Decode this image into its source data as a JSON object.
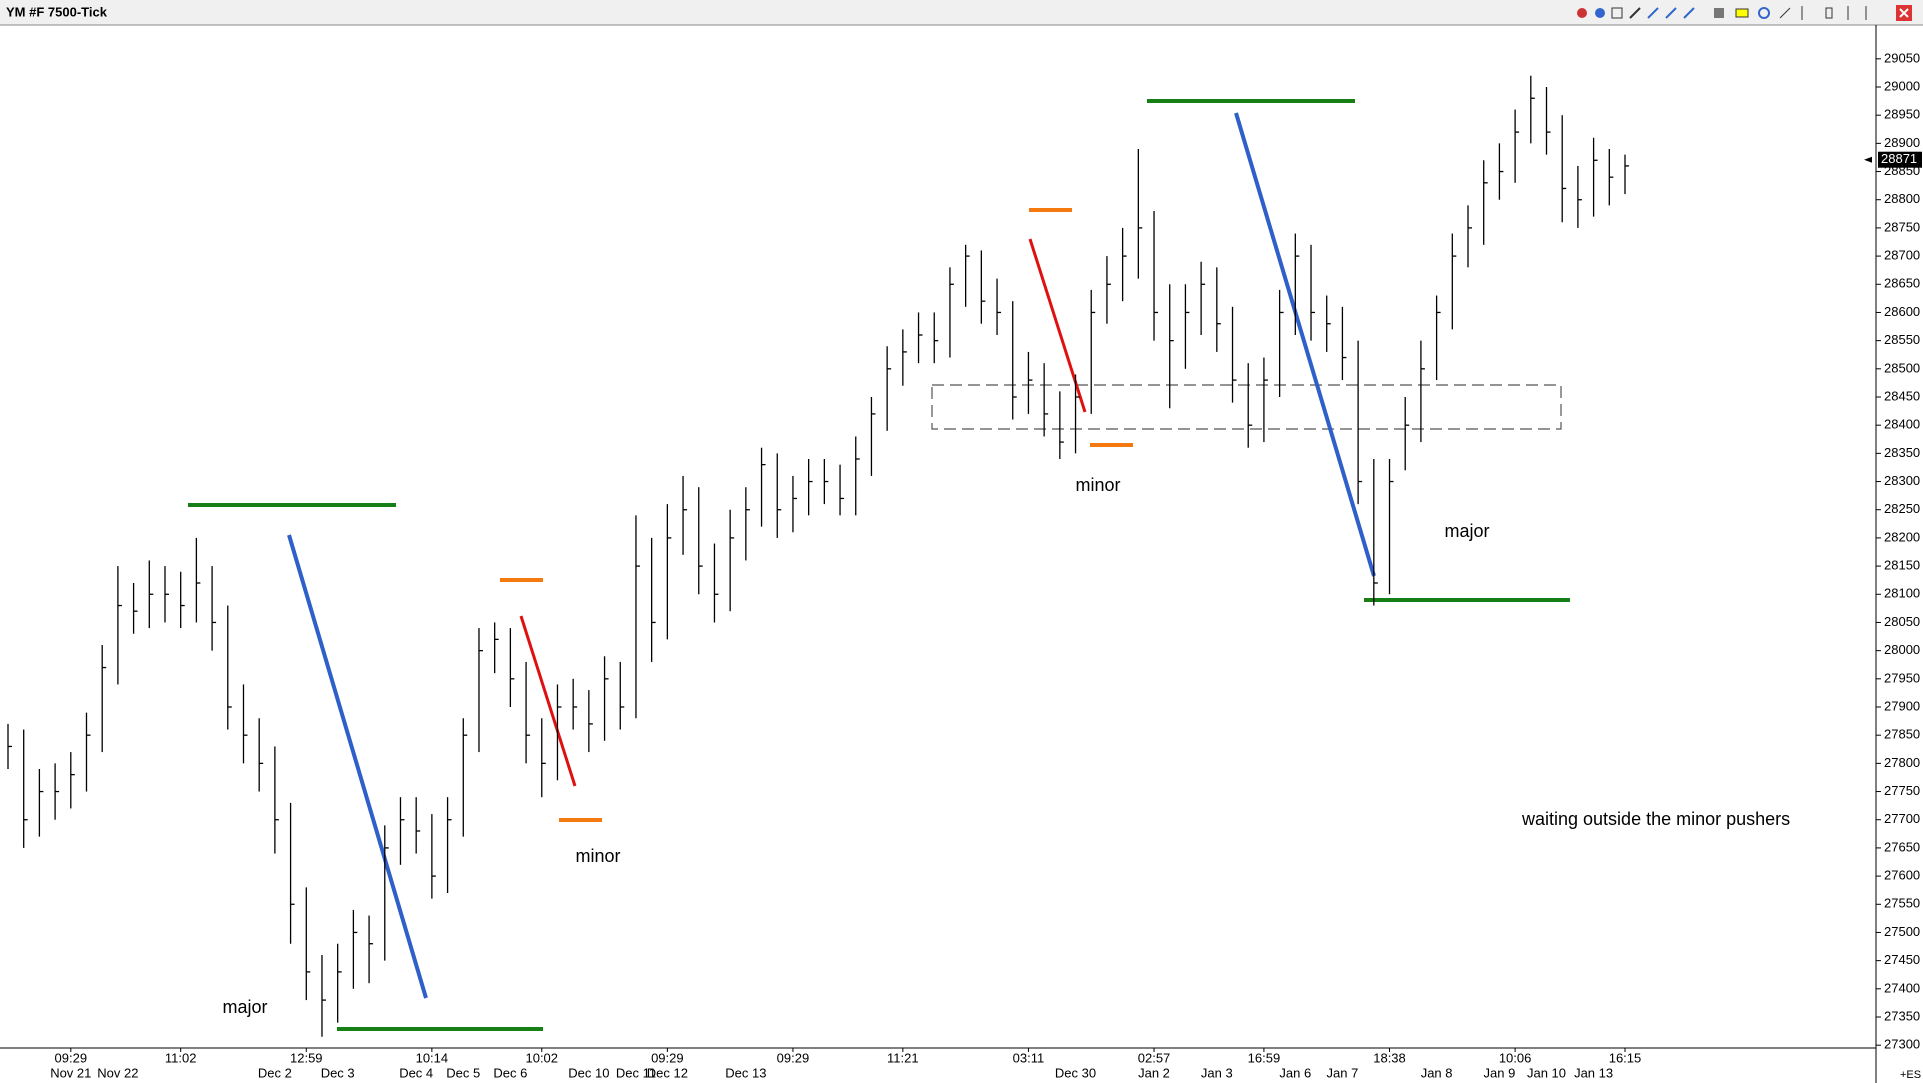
{
  "chart_data": {
    "type": "hlc_bar",
    "title": "YM #F 7500-Tick",
    "color": "#000000",
    "ylim": [
      27295,
      29110
    ],
    "yticks": [
      27300,
      27350,
      27400,
      27450,
      27500,
      27550,
      27600,
      27650,
      27700,
      27750,
      27800,
      27850,
      27900,
      27950,
      28000,
      28050,
      28100,
      28150,
      28200,
      28250,
      28300,
      28350,
      28400,
      28450,
      28500,
      28550,
      28600,
      28650,
      28700,
      28750,
      28800,
      28850,
      28900,
      28950,
      29000,
      29050
    ],
    "last_price": 28871,
    "symbol_note": "+ES",
    "annotations": [
      "major",
      "minor",
      "minor",
      "major",
      "waiting outside the minor pushers"
    ],
    "time_labels": [
      null,
      null,
      null,
      null,
      "09:29",
      null,
      null,
      null,
      null,
      null,
      null,
      "11:02",
      null,
      null,
      null,
      null,
      null,
      null,
      null,
      "12:59",
      null,
      null,
      null,
      null,
      null,
      null,
      null,
      "10:14",
      null,
      null,
      null,
      null,
      null,
      null,
      "10:02",
      null,
      null,
      null,
      null,
      null,
      null,
      null,
      "09:29",
      null,
      null,
      null,
      null,
      null,
      null,
      null,
      "09:29",
      null,
      null,
      null,
      null,
      null,
      null,
      "11:21",
      null,
      null,
      null,
      null,
      null,
      null,
      null,
      "03:11",
      null,
      null,
      null,
      null,
      null,
      null,
      null,
      "02:57",
      null,
      null,
      null,
      null,
      null,
      null,
      "16:59",
      null,
      null,
      null,
      null,
      null,
      null,
      null,
      "18:38",
      null,
      null,
      null,
      null,
      null,
      null,
      null,
      "10:06",
      null,
      null,
      null,
      null,
      null,
      null,
      "16:15"
    ],
    "categories": [
      null,
      null,
      null,
      null,
      "Nov 21",
      null,
      null,
      "Nov 22",
      null,
      null,
      null,
      null,
      null,
      null,
      null,
      null,
      null,
      "Dec 2",
      null,
      null,
      null,
      "Dec 3",
      null,
      null,
      null,
      null,
      "Dec 4",
      null,
      null,
      "Dec 5",
      null,
      null,
      "Dec 6",
      null,
      null,
      null,
      null,
      "Dec 10",
      null,
      null,
      "Dec 11",
      null,
      "Dec 12",
      null,
      null,
      null,
      null,
      "Dec 13",
      null,
      null,
      null,
      null,
      null,
      null,
      null,
      null,
      null,
      null,
      null,
      null,
      null,
      null,
      null,
      null,
      null,
      null,
      null,
      null,
      "Dec 30",
      null,
      null,
      null,
      null,
      "Jan 2",
      null,
      null,
      null,
      "Jan 3",
      null,
      null,
      null,
      null,
      "Jan 6",
      null,
      null,
      "Jan 7",
      null,
      null,
      null,
      null,
      null,
      "Jan 8",
      null,
      null,
      null,
      "Jan 9",
      null,
      null,
      "Jan 10",
      null,
      null,
      "Jan 13",
      null,
      null
    ],
    "high": [
      27870,
      27860,
      27790,
      27800,
      27820,
      27890,
      28010,
      28150,
      28120,
      28160,
      28150,
      28140,
      28200,
      28150,
      28080,
      27940,
      27880,
      27830,
      27730,
      27580,
      27460,
      27480,
      27540,
      27530,
      27690,
      27740,
      27740,
      27710,
      27740,
      27880,
      28040,
      28050,
      28040,
      27980,
      27880,
      27940,
      27950,
      27930,
      27990,
      27980,
      28240,
      28200,
      28260,
      28310,
      28290,
      28190,
      28250,
      28290,
      28360,
      28350,
      28310,
      28340,
      28340,
      28330,
      28380,
      28450,
      28540,
      28570,
      28600,
      28600,
      28680,
      28720,
      28710,
      28660,
      28620,
      28530,
      28510,
      28460,
      28490,
      28640,
      28700,
      28750,
      28890,
      28780,
      28650,
      28650,
      28690,
      28680,
      28610,
      28510,
      28520,
      28640,
      28740,
      28720,
      28630,
      28610,
      28550,
      28340,
      28340,
      28450,
      28550,
      28630,
      28740,
      28790,
      28870,
      28900,
      28960,
      29020,
      29000,
      28950,
      28860,
      28910,
      28890,
      28880
    ],
    "low": [
      27790,
      27650,
      27670,
      27700,
      27720,
      27750,
      27820,
      27940,
      28030,
      28040,
      28050,
      28040,
      28050,
      28000,
      27860,
      27800,
      27750,
      27640,
      27480,
      27380,
      27315,
      27340,
      27400,
      27410,
      27450,
      27620,
      27640,
      27560,
      27570,
      27670,
      27820,
      27960,
      27900,
      27800,
      27740,
      27770,
      27860,
      27820,
      27840,
      27860,
      27880,
      27980,
      28020,
      28170,
      28100,
      28050,
      28070,
      28160,
      28220,
      28200,
      28210,
      28240,
      28260,
      28240,
      28240,
      28310,
      28390,
      28470,
      28510,
      28510,
      28520,
      28610,
      28580,
      28560,
      28410,
      28420,
      28380,
      28340,
      28350,
      28420,
      28580,
      28620,
      28660,
      28550,
      28430,
      28500,
      28560,
      28530,
      28440,
      28360,
      28370,
      28450,
      28560,
      28550,
      28530,
      28480,
      28260,
      28080,
      28100,
      28320,
      28370,
      28480,
      28570,
      28680,
      28720,
      28800,
      28830,
      28900,
      28880,
      28760,
      28750,
      28770,
      28790,
      28810
    ],
    "close": [
      27830,
      27700,
      27750,
      27750,
      27780,
      27850,
      27970,
      28080,
      28070,
      28100,
      28100,
      28080,
      28120,
      28050,
      27900,
      27850,
      27800,
      27700,
      27550,
      27430,
      27380,
      27430,
      27500,
      27480,
      27650,
      27700,
      27680,
      27600,
      27700,
      27850,
      28000,
      28020,
      27950,
      27850,
      27800,
      27900,
      27900,
      27870,
      27950,
      27900,
      28150,
      28050,
      28200,
      28250,
      28150,
      28100,
      28200,
      28250,
      28330,
      28250,
      28270,
      28300,
      28300,
      28270,
      28340,
      28420,
      28500,
      28530,
      28560,
      28550,
      28650,
      28700,
      28620,
      28600,
      28450,
      28480,
      28420,
      28370,
      28450,
      28600,
      28650,
      28700,
      28750,
      28600,
      28550,
      28600,
      28650,
      28580,
      28480,
      28400,
      28480,
      28600,
      28700,
      28600,
      28580,
      28520,
      28300,
      28120,
      28300,
      28400,
      28500,
      28600,
      28700,
      28750,
      28830,
      28850,
      28920,
      28980,
      28920,
      28820,
      28800,
      28870,
      28840,
      28860
    ]
  }
}
